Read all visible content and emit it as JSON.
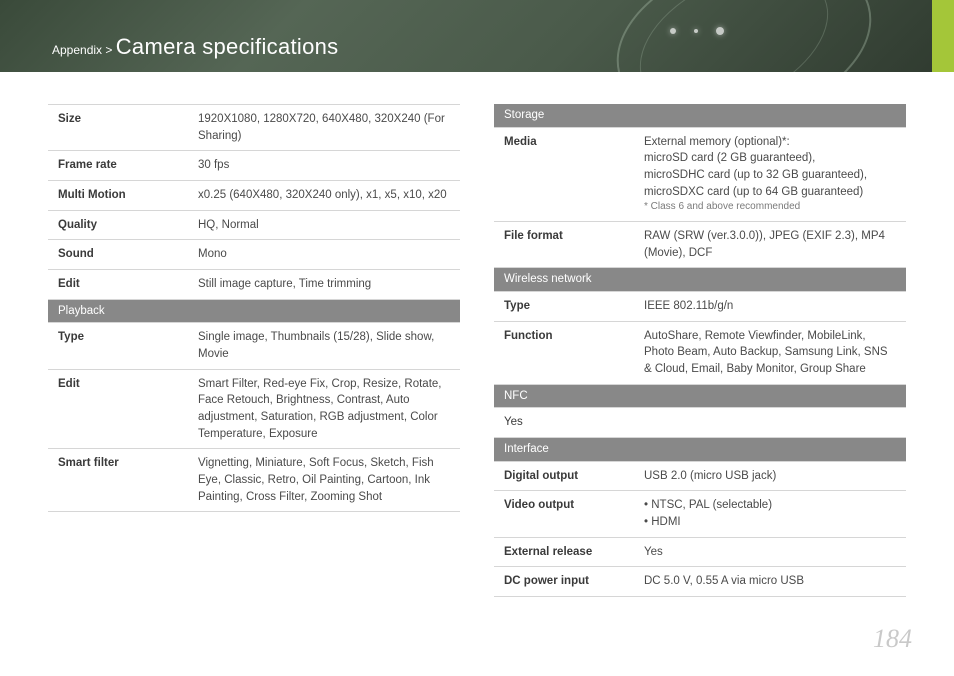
{
  "breadcrumb": {
    "prefix": "Appendix >",
    "title": "Camera specifications"
  },
  "page_number": "184",
  "left_table": [
    {
      "type": "row",
      "label": "Size",
      "value": "1920X1080, 1280X720, 640X480, 320X240 (For Sharing)"
    },
    {
      "type": "row",
      "label": "Frame rate",
      "value": "30 fps"
    },
    {
      "type": "row",
      "label": "Multi Motion",
      "value": "x0.25 (640X480, 320X240 only), x1, x5, x10, x20"
    },
    {
      "type": "row",
      "label": "Quality",
      "value": "HQ, Normal"
    },
    {
      "type": "row",
      "label": "Sound",
      "value": "Mono"
    },
    {
      "type": "row",
      "label": "Edit",
      "value": "Still image capture, Time trimming"
    },
    {
      "type": "section",
      "label": "Playback"
    },
    {
      "type": "row",
      "label": "Type",
      "value": "Single image, Thumbnails (15/28), Slide show, Movie"
    },
    {
      "type": "row",
      "label": "Edit",
      "value": "Smart Filter, Red-eye Fix, Crop, Resize, Rotate, Face Retouch, Brightness, Contrast, Auto adjustment, Saturation, RGB adjustment, Color Temperature, Exposure"
    },
    {
      "type": "row",
      "label": "Smart filter",
      "value": "Vignetting, Miniature, Soft Focus, Sketch, Fish Eye, Classic, Retro, Oil Painting, Cartoon, Ink Painting, Cross Filter, Zooming Shot"
    }
  ],
  "right_table": [
    {
      "type": "section",
      "label": "Storage"
    },
    {
      "type": "row",
      "label": "Media",
      "value": "External memory (optional)*:\nmicroSD card (2 GB guaranteed),\nmicroSDHC card (up to 32 GB guaranteed),\nmicroSDXC card (up to 64 GB guaranteed)",
      "footnote": "* Class 6 and above recommended"
    },
    {
      "type": "row",
      "label": "File format",
      "value": "RAW (SRW (ver.3.0.0)), JPEG (EXIF 2.3), MP4 (Movie), DCF"
    },
    {
      "type": "section",
      "label": "Wireless network"
    },
    {
      "type": "row",
      "label": "Type",
      "value": "IEEE 802.11b/g/n"
    },
    {
      "type": "row",
      "label": "Function",
      "value": "AutoShare, Remote Viewfinder, MobileLink, Photo Beam, Auto Backup, Samsung Link, SNS & Cloud, Email, Baby Monitor, Group Share"
    },
    {
      "type": "section",
      "label": "NFC"
    },
    {
      "type": "row",
      "label": "Yes",
      "value": "",
      "single": true
    },
    {
      "type": "section",
      "label": "Interface"
    },
    {
      "type": "row",
      "label": "Digital output",
      "value": "USB 2.0 (micro USB jack)"
    },
    {
      "type": "row",
      "label": "Video output",
      "bullets": [
        "NTSC, PAL (selectable)",
        "HDMI"
      ]
    },
    {
      "type": "row",
      "label": "External release",
      "value": "Yes"
    },
    {
      "type": "row",
      "label": "DC power input",
      "value": "DC 5.0 V, 0.55 A via micro USB"
    }
  ]
}
